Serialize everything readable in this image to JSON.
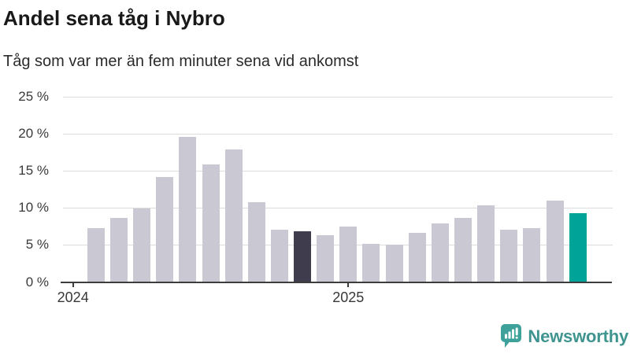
{
  "title": "Andel sena tåg i Nybro",
  "subtitle": "Tåg som var mer än fem minuter sena vid ankomst",
  "chart_data": {
    "type": "bar",
    "unit": "%",
    "values": [
      7.3,
      8.7,
      9.9,
      14.2,
      19.6,
      15.9,
      17.9,
      10.8,
      7.1,
      6.9,
      6.3,
      7.5,
      5.2,
      5.0,
      6.6,
      7.9,
      8.6,
      10.3,
      7.1,
      7.3,
      11.0,
      9.3
    ],
    "ylim": [
      0,
      25
    ],
    "grid": true,
    "y_tick_labels": [
      "25 %",
      "20 %",
      "15 %",
      "10 %",
      "5 %",
      "0 %"
    ],
    "x_tick_labels": [
      "2024",
      "2025"
    ],
    "bar_colors": {
      "default": "#cac9d3",
      "dark_highlight": "#3f3d4d",
      "accent_highlight": "#00a398"
    },
    "dark_highlight_index": 9,
    "accent_highlight_index": 21
  },
  "branding": {
    "logo_text": "Newsworthy",
    "logo_text_color": "#3f948f",
    "logo_icon_color": "#3ea29b",
    "logo_icon": "bar-chart-speech-bubble-icon"
  }
}
